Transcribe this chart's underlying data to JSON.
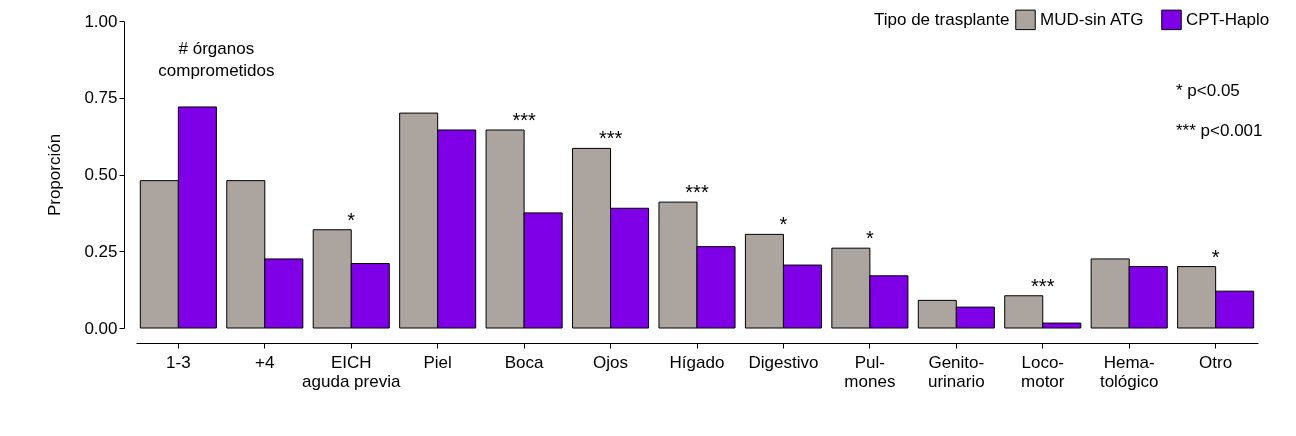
{
  "chart_data": {
    "type": "bar",
    "ylabel": "Proporción",
    "legend_title": "Tipo de trasplante",
    "legend": "top right",
    "grid": false,
    "categories": [
      "1-3",
      "+4",
      "EICH\naguda previa",
      "Piel",
      "Boca",
      "Ojos",
      "Hígado",
      "Digestivo",
      "Pul-\nmones",
      "Genito-\nurinario",
      "Loco-\nmotor",
      "Hema-\ntológico",
      "Otro"
    ],
    "series": [
      {
        "name": "MUD-sin ATG",
        "color": "#aca49f",
        "values": [
          0.48,
          0.48,
          0.32,
          0.7,
          0.645,
          0.585,
          0.41,
          0.305,
          0.26,
          0.09,
          0.105,
          0.225,
          0.2
        ]
      },
      {
        "name": "CPT-Haplo",
        "color": "#7f00e6",
        "values": [
          0.72,
          0.225,
          0.21,
          0.645,
          0.375,
          0.39,
          0.265,
          0.205,
          0.17,
          0.068,
          0.016,
          0.2,
          0.12
        ]
      }
    ],
    "ylim": [
      0,
      1
    ],
    "yticks": [
      {
        "value": 0,
        "label": "0.00"
      },
      {
        "value": 0.25,
        "label": "0.25"
      },
      {
        "value": 0.5,
        "label": "0.50"
      },
      {
        "value": 0.75,
        "label": "0.75"
      },
      {
        "value": 1,
        "label": "1.00"
      }
    ],
    "annotations": [
      "# órganos\ncomprometidos",
      "* p<0.05",
      "*** p<0.001",
      {
        "text": "*",
        "x": "EICH\naguda previa",
        "y": 0.33
      },
      {
        "text": "***",
        "x": "Boca",
        "y": 0.655
      },
      {
        "text": "***",
        "x": "Ojos",
        "y": 0.595
      },
      {
        "text": "***",
        "x": "Hígado",
        "y": 0.42
      },
      {
        "text": "*",
        "x": "Digestivo",
        "y": 0.315
      },
      {
        "text": "*",
        "x": "Pul-\nmones",
        "y": 0.27
      },
      {
        "text": "***",
        "x": "Loco-\nmotor",
        "y": 0.115
      },
      {
        "text": "*",
        "x": "Otro",
        "y": 0.21
      }
    ]
  }
}
